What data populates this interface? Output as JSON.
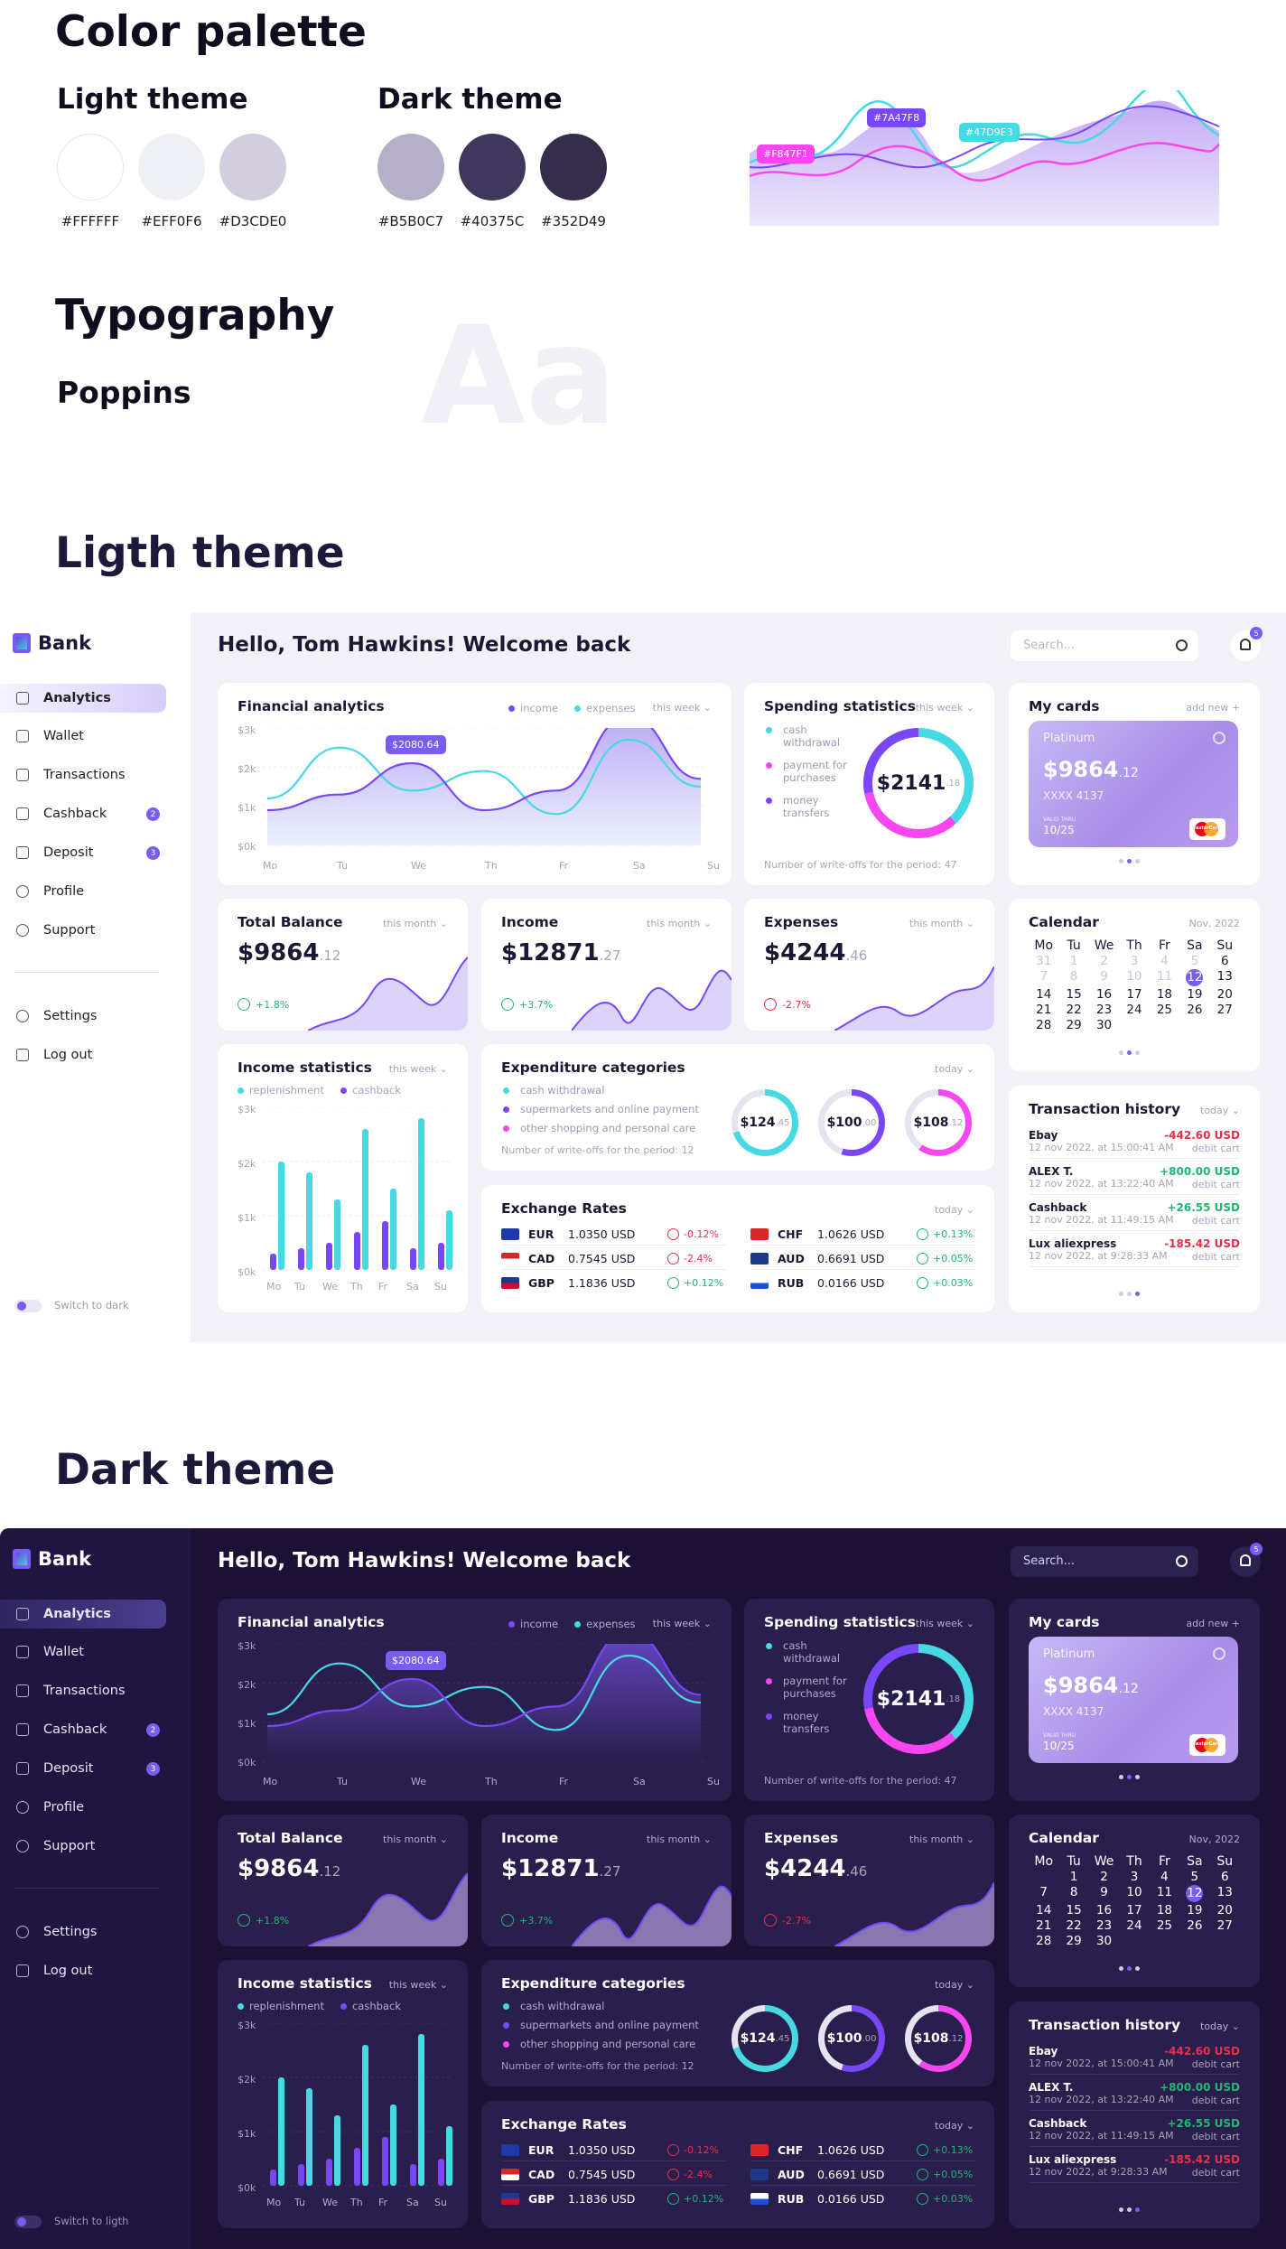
{
  "page": {
    "palette_title": "Color palette",
    "light_theme_label": "Light theme",
    "dark_theme_label": "Dark theme",
    "light_swatches": [
      {
        "hex": "#FFFFFF"
      },
      {
        "hex": "#EFF0F6"
      },
      {
        "hex": "#D3CDE0"
      }
    ],
    "dark_swatches": [
      {
        "hex": "#B5B0C7"
      },
      {
        "hex": "#40375C"
      },
      {
        "hex": "#352D49"
      }
    ],
    "accent_tags": [
      "#F847F1",
      "#7A47F8",
      "#47D9E3"
    ],
    "typography_title": "Typography",
    "font_name": "Poppins",
    "font_sample": "Aa",
    "light_section_title": "Ligth theme",
    "dark_section_title": "Dark theme"
  },
  "app": {
    "brand": "Bank",
    "greeting": "Hello, Tom Hawkins! Welcome back",
    "search_placeholder": "Search...",
    "notifications": "5",
    "nav": [
      {
        "label": "Analytics",
        "badge": ""
      },
      {
        "label": "Wallet",
        "badge": ""
      },
      {
        "label": "Transactions",
        "badge": ""
      },
      {
        "label": "Cashback",
        "badge": "2"
      },
      {
        "label": "Deposit",
        "badge": "3"
      },
      {
        "label": "Profile",
        "badge": ""
      },
      {
        "label": "Support",
        "badge": ""
      }
    ],
    "nav_bottom": [
      "Settings",
      "Log out"
    ],
    "switch_light": "Switch to dark",
    "switch_dark": "Switch to ligth",
    "financial": {
      "title": "Financial analytics",
      "legend": [
        "income",
        "expenses"
      ],
      "period": "this week",
      "y_ticks": [
        "$3k",
        "$2k",
        "$1k",
        "$0k"
      ],
      "x_ticks": [
        "Mo",
        "Tu",
        "We",
        "Th",
        "Fr",
        "Sa",
        "Su"
      ],
      "tooltip": "$2080.64"
    },
    "spending": {
      "title": "Spending statistics",
      "period": "this week",
      "items": [
        "cash withdrawal",
        "payment for purchases",
        "money transfers"
      ],
      "total": "$2141",
      "total_cents": ".18",
      "footer": "Number of write-offs for the period: 47"
    },
    "cards": {
      "title": "My cards",
      "add": "add new +",
      "tier": "Platinum",
      "balance": "$9864",
      "cents": ".12",
      "number": "XXXX 4137",
      "valid_label": "VALID THRU",
      "valid": "10/25",
      "brand": "MasterCard"
    },
    "total_balance": {
      "title": "Total Balance",
      "period": "this month",
      "value": "$9864",
      "cents": ".12",
      "change": "+1.8%"
    },
    "income": {
      "title": "Income",
      "period": "this month",
      "value": "$12871",
      "cents": ".27",
      "change": "+3.7%"
    },
    "expenses": {
      "title": "Expenses",
      "period": "this month",
      "value": "$4244",
      "cents": ".46",
      "change": "-2.7%"
    },
    "calendar": {
      "title": "Calendar",
      "month": "Nov, 2022",
      "days": [
        "Mo",
        "Tu",
        "We",
        "Th",
        "Fr",
        "Sa",
        "Su"
      ],
      "light_rows": [
        [
          "31",
          "1",
          "2",
          "3",
          "4",
          "5",
          "6"
        ],
        [
          "7",
          "8",
          "9",
          "10",
          "11",
          "12",
          "13"
        ],
        [
          "14",
          "15",
          "16",
          "17",
          "18",
          "19",
          "20"
        ],
        [
          "21",
          "22",
          "23",
          "24",
          "25",
          "26",
          "27"
        ],
        [
          "28",
          "29",
          "30",
          "",
          "",
          "",
          ""
        ]
      ],
      "dark_rows": [
        [
          "",
          "1",
          "2",
          "3",
          "4",
          "5",
          "6"
        ],
        [
          "7",
          "8",
          "9",
          "10",
          "11",
          "12",
          "13"
        ],
        [
          "14",
          "15",
          "16",
          "17",
          "18",
          "19",
          "20"
        ],
        [
          "21",
          "22",
          "23",
          "24",
          "25",
          "26",
          "27"
        ],
        [
          "28",
          "29",
          "30",
          "",
          "",
          "",
          ""
        ]
      ]
    },
    "income_stats": {
      "title": "Income statistics",
      "period": "this week",
      "legend": [
        "replenishment",
        "cashback"
      ],
      "y_ticks": [
        "$3k",
        "$2k",
        "$1k",
        "$0k"
      ],
      "x_ticks": [
        "Mo",
        "Tu",
        "We",
        "Th",
        "Fr",
        "Sa",
        "Su"
      ]
    },
    "expenditure": {
      "title": "Expenditure categories",
      "period": "today",
      "items": [
        "cash withdrawal",
        "supermarkets and online payment",
        "other shopping and personal care"
      ],
      "footer": "Number of write-offs for the period: 12",
      "rings": [
        {
          "v": "$124",
          "c": ".45"
        },
        {
          "v": "$100",
          "c": ".00"
        },
        {
          "v": "$108",
          "c": ".12"
        }
      ]
    },
    "exchange": {
      "title": "Exchange Rates",
      "period": "today",
      "rows": [
        {
          "cur": "EUR",
          "val": "1.0350 USD",
          "chg": "-0.12%"
        },
        {
          "cur": "CAD",
          "val": "0.7545 USD",
          "chg": "-2.4%"
        },
        {
          "cur": "GBP",
          "val": "1.1836 USD",
          "chg": "+0.12%"
        },
        {
          "cur": "CHF",
          "val": "1.0626 USD",
          "chg": "+0.13%"
        },
        {
          "cur": "AUD",
          "val": "0.6691 USD",
          "chg": "+0.05%"
        },
        {
          "cur": "RUB",
          "val": "0.0166 USD",
          "chg": "+0.03%"
        }
      ]
    },
    "history": {
      "title": "Transaction history",
      "period": "today",
      "items": [
        {
          "name": "Ebay",
          "date": "12 nov 2022, at 15:00:41 AM",
          "amount": "-442.60 USD",
          "kind": "debit cart"
        },
        {
          "name": "ALEX T.",
          "date": "12 nov 2022, at 13:22:40 AM",
          "amount": "+800.00 USD",
          "kind": "debit cart"
        },
        {
          "name": "Cashback",
          "date": "12 nov 2022, at 11:49:15 AM",
          "amount": "+26.55 USD",
          "kind": "debit cart"
        },
        {
          "name": "Lux aliexpress",
          "date": "12 nov 2022, at 9:28:33 AM",
          "amount": "-185.42 USD",
          "kind": "debit cart"
        }
      ]
    }
  },
  "chart_data": [
    {
      "type": "line",
      "title": "Financial analytics",
      "x": [
        "Mo",
        "Tu",
        "We",
        "Th",
        "Fr",
        "Sa",
        "Su"
      ],
      "series": [
        {
          "name": "income",
          "values": [
            0.9,
            1.3,
            2.1,
            0.9,
            1.4,
            3.3,
            1.7
          ]
        },
        {
          "name": "expenses",
          "values": [
            1.2,
            2.5,
            1.4,
            1.9,
            0.8,
            2.7,
            1.5
          ]
        }
      ],
      "ylim": [
        0,
        3
      ]
    },
    {
      "type": "bar",
      "title": "Income statistics",
      "categories": [
        "Mo",
        "Tu",
        "We",
        "Th",
        "Fr",
        "Sa",
        "Su"
      ],
      "series": [
        {
          "name": "replenishment",
          "values": [
            2.0,
            1.8,
            1.3,
            2.6,
            1.5,
            2.8,
            1.1
          ]
        },
        {
          "name": "cashback",
          "values": [
            0.3,
            0.4,
            0.5,
            0.7,
            0.9,
            0.4,
            0.5
          ]
        }
      ],
      "ylim": [
        0,
        3
      ]
    }
  ]
}
